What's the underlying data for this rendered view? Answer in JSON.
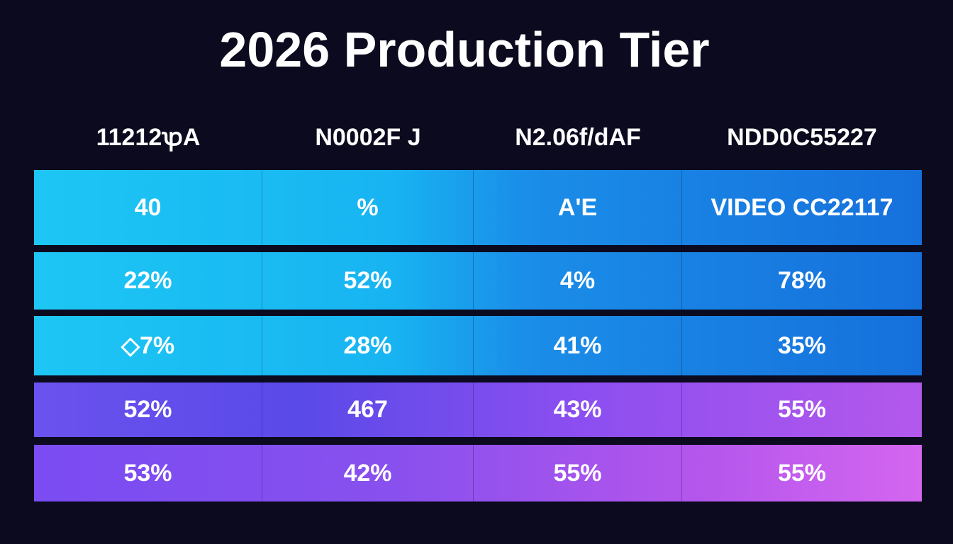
{
  "chart_data": {
    "type": "table",
    "title": "2026 Production Tier",
    "columns": [
      "11212ꝕA",
      "N0002F J",
      "N2.06f/dAF",
      "NDD0C55227"
    ],
    "rows": [
      [
        "40",
        "%",
        "A'E",
        "VIDEO CC22117"
      ],
      [
        "22%",
        "52%",
        "4%",
        "78%"
      ],
      [
        "◇7%",
        "28%",
        "41%",
        "35%"
      ],
      [
        "52%",
        "467",
        "43%",
        "55%"
      ],
      [
        "53%",
        "42%",
        "55%",
        "55%"
      ]
    ],
    "colors": {
      "background": "#0b0a1e",
      "blue_rows": "#1aa8f0",
      "purple_rows": "#8a4ef0"
    }
  }
}
